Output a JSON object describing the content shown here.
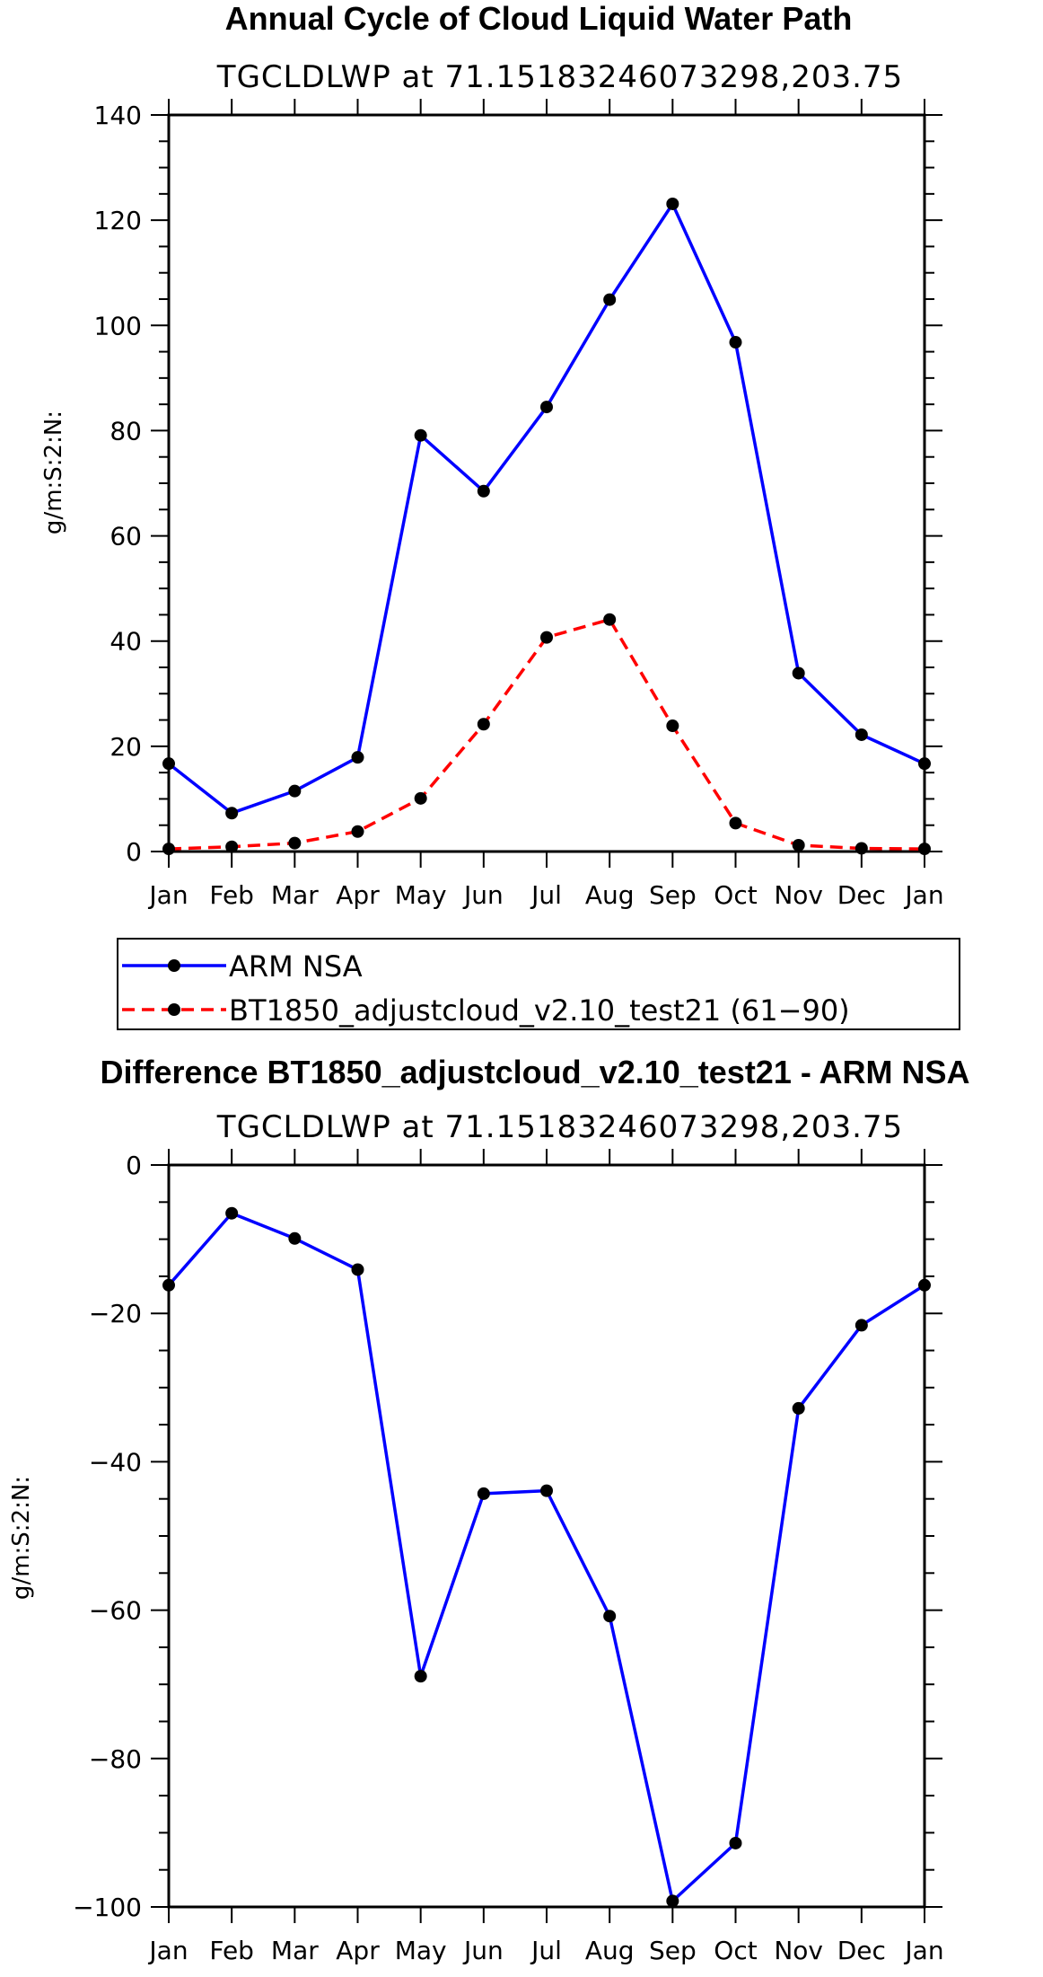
{
  "chart_data": [
    {
      "type": "line",
      "title": "Annual Cycle of Cloud Liquid Water Path",
      "subtitle": "TGCLDLWP at 71.15183246073298,203.75",
      "ylabel": "g/m:S:2:N:",
      "xlabel": "",
      "categories": [
        "Jan",
        "Feb",
        "Mar",
        "Apr",
        "May",
        "Jun",
        "Jul",
        "Aug",
        "Sep",
        "Oct",
        "Nov",
        "Dec",
        "Jan"
      ],
      "ylim": [
        0,
        140
      ],
      "yticks": [
        "0",
        "20",
        "40",
        "60",
        "80",
        "100",
        "120",
        "140"
      ],
      "series": [
        {
          "name": "ARM NSA",
          "color": "#0000ff",
          "dash": "solid",
          "values": [
            16.7,
            7.3,
            11.5,
            17.9,
            79.1,
            68.5,
            84.5,
            104.9,
            123.1,
            96.8,
            33.9,
            22.2,
            16.7
          ]
        },
        {
          "name": "BT1850_adjustcloud_v2.10_test21 (61−90)",
          "color": "#ff0000",
          "dash": "dashed",
          "values": [
            0.5,
            0.9,
            1.6,
            3.8,
            10.1,
            24.2,
            40.7,
            44.1,
            23.9,
            5.4,
            1.2,
            0.6,
            0.5
          ]
        }
      ],
      "legend": "below"
    },
    {
      "type": "line",
      "title": "Difference BT1850_adjustcloud_v2.10_test21 - ARM NSA",
      "subtitle": "TGCLDLWP at 71.15183246073298,203.75",
      "ylabel": "g/m:S:2:N:",
      "xlabel": "",
      "categories": [
        "Jan",
        "Feb",
        "Mar",
        "Apr",
        "May",
        "Jun",
        "Jul",
        "Aug",
        "Sep",
        "Oct",
        "Nov",
        "Dec",
        "Jan"
      ],
      "ylim": [
        -100,
        0
      ],
      "yticks": [
        "−100",
        "−80",
        "−60",
        "−40",
        "−20",
        "0"
      ],
      "series": [
        {
          "color": "#0000ff",
          "dash": "solid",
          "values": [
            -16.2,
            -6.5,
            -9.9,
            -14.1,
            -68.9,
            -44.3,
            -43.9,
            -60.8,
            -99.2,
            -91.4,
            -32.8,
            -21.6,
            -16.2
          ]
        }
      ]
    }
  ]
}
